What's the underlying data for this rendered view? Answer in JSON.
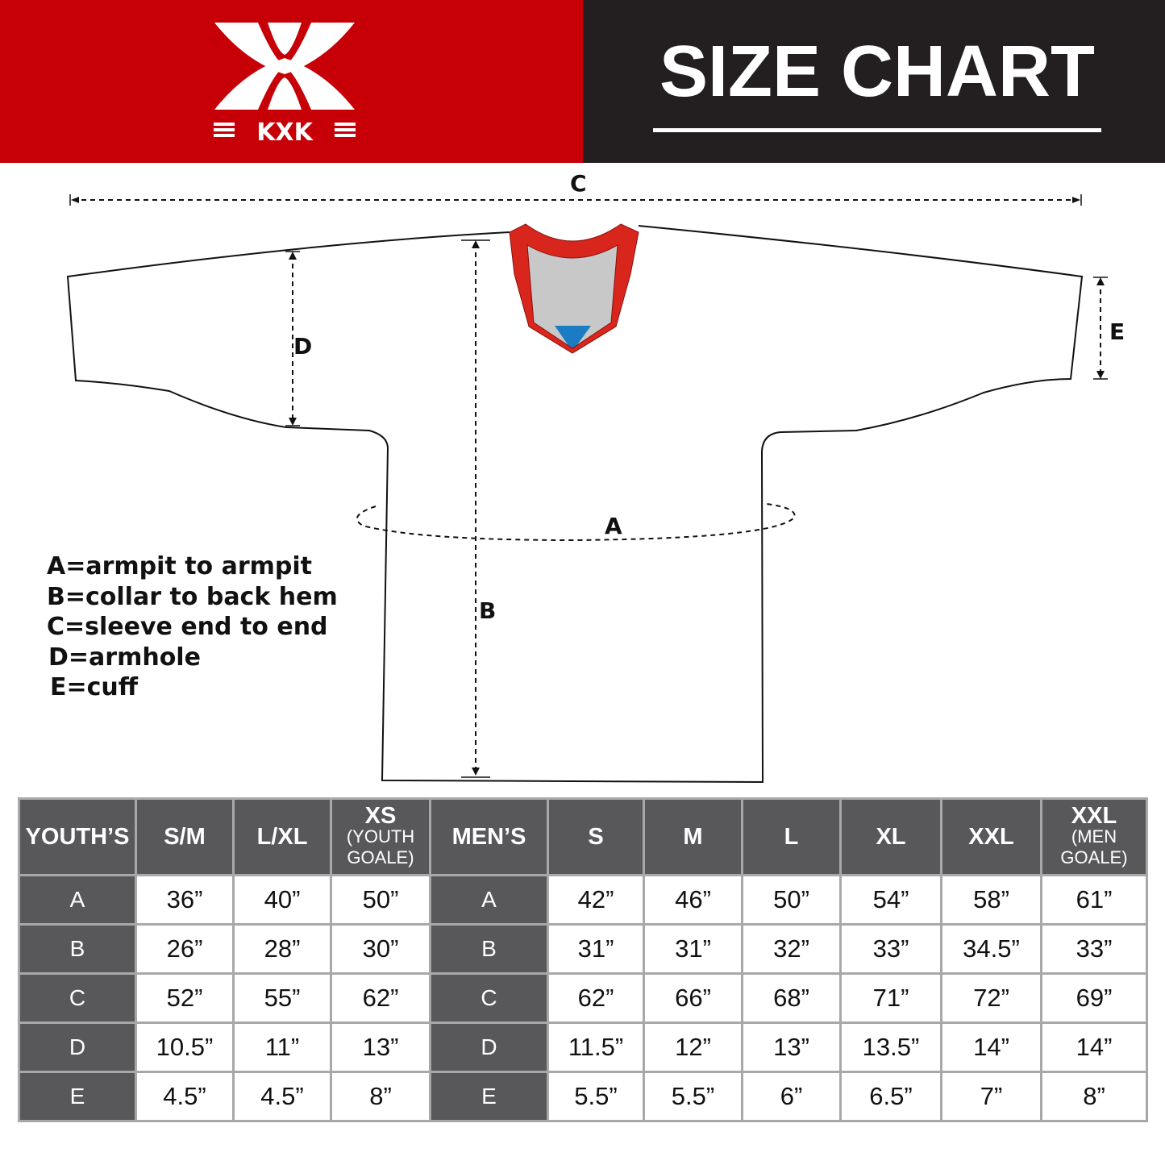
{
  "header": {
    "brand": "KXK",
    "title": "SIZE CHART",
    "colors": {
      "brand_red": "#c70007",
      "dark": "#231f20",
      "table_header": "#58585a",
      "collar_red": "#d9261c",
      "collar_blue": "#1a7dc4"
    }
  },
  "diagram": {
    "labels": {
      "a": "A",
      "b": "B",
      "c": "C",
      "d": "D",
      "e": "E"
    },
    "legend": [
      "A=armpit to armpit",
      "B=collar to back hem",
      "C=sleeve end to end",
      "D=armhole",
      "E=cuff"
    ]
  },
  "table": {
    "youth": {
      "header": "YOUTH’S",
      "columns": [
        {
          "label": "S/M",
          "sub": ""
        },
        {
          "label": "L/XL",
          "sub": ""
        },
        {
          "label": "XS",
          "sub": "(YOUTH GOALE)"
        }
      ]
    },
    "men": {
      "header": "MEN’S",
      "columns": [
        {
          "label": "S",
          "sub": ""
        },
        {
          "label": "M",
          "sub": ""
        },
        {
          "label": "L",
          "sub": ""
        },
        {
          "label": "XL",
          "sub": ""
        },
        {
          "label": "XXL",
          "sub": ""
        },
        {
          "label": "XXL",
          "sub": "(MEN GOALE)"
        }
      ]
    },
    "rows": [
      {
        "key": "A",
        "youth": [
          "36”",
          "40”",
          "50”"
        ],
        "men": [
          "42”",
          "46”",
          "50”",
          "54”",
          "58”",
          "61”"
        ]
      },
      {
        "key": "B",
        "youth": [
          "26”",
          "28”",
          "30”"
        ],
        "men": [
          "31”",
          "31”",
          "32”",
          "33”",
          "34.5”",
          "33”"
        ]
      },
      {
        "key": "C",
        "youth": [
          "52”",
          "55”",
          "62”"
        ],
        "men": [
          "62”",
          "66”",
          "68”",
          "71”",
          "72”",
          "69”"
        ]
      },
      {
        "key": "D",
        "youth": [
          "10.5”",
          "11”",
          "13”"
        ],
        "men": [
          "11.5”",
          "12”",
          "13”",
          "13.5”",
          "14”",
          "14”"
        ]
      },
      {
        "key": "E",
        "youth": [
          "4.5”",
          "4.5”",
          "8”"
        ],
        "men": [
          "5.5”",
          "5.5”",
          "6”",
          "6.5”",
          "7”",
          "8”"
        ]
      }
    ]
  }
}
